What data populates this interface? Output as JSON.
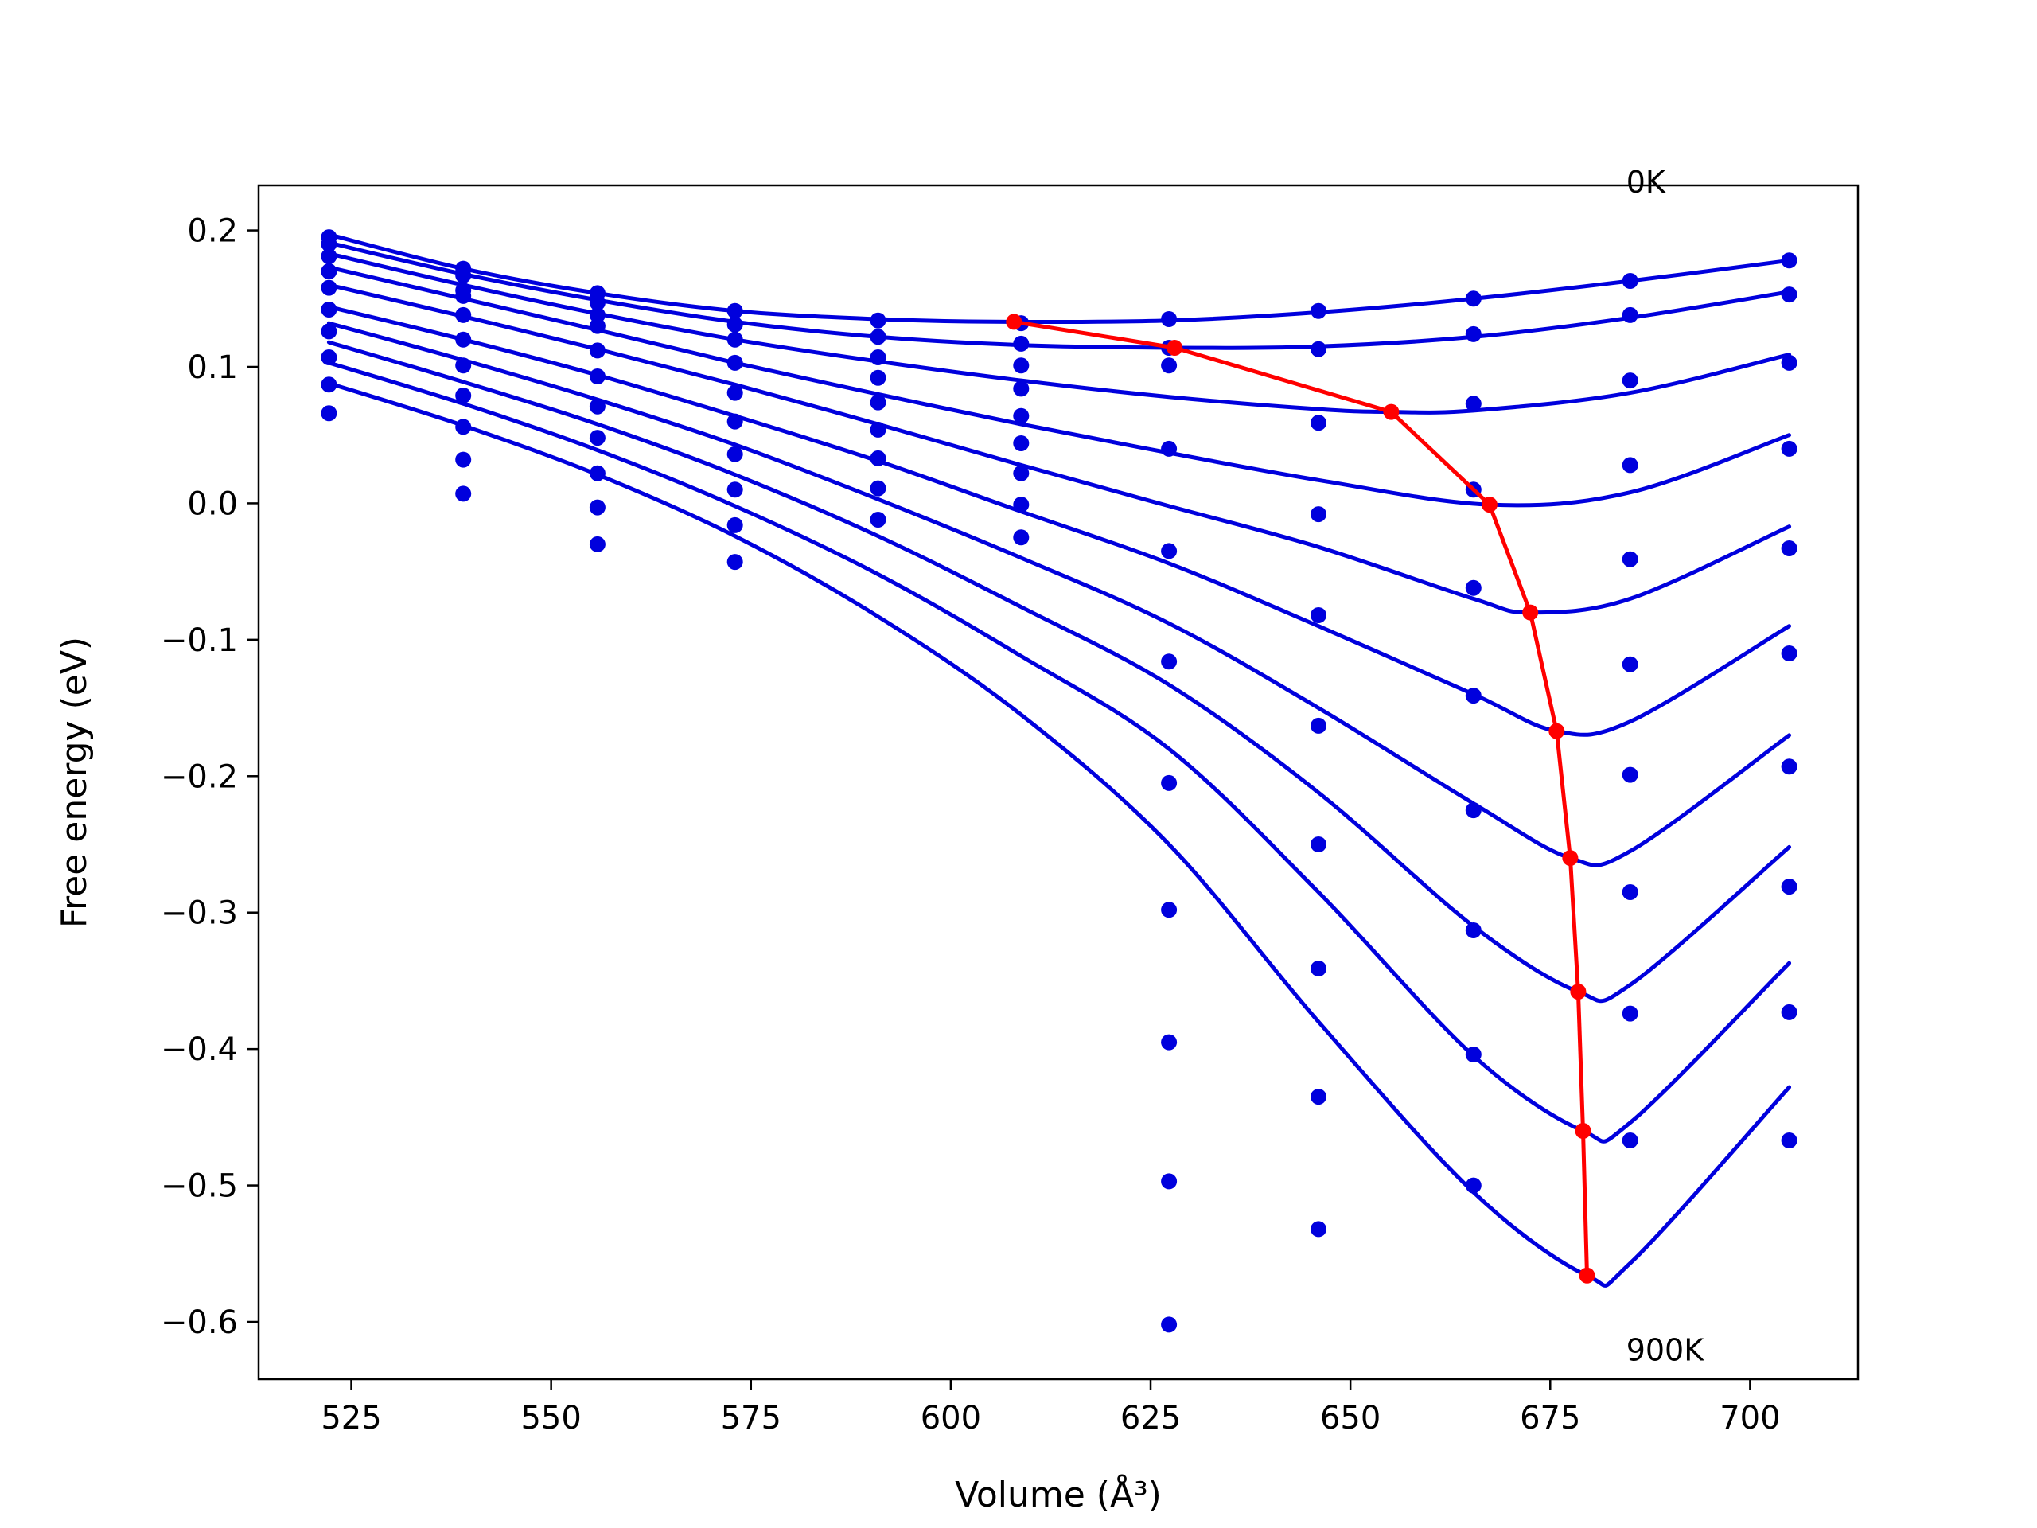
{
  "chart_data": {
    "type": "line",
    "xlabel": "Volume (Å³)",
    "ylabel": "Free energy (eV)",
    "xlim": [
      513.4,
      713.5
    ],
    "ylim": [
      -0.642,
      0.233
    ],
    "x_ticks": [
      525,
      550,
      575,
      600,
      625,
      650,
      675,
      700
    ],
    "y_ticks": [
      0.2,
      0.1,
      0.0,
      -0.1,
      -0.2,
      -0.3,
      -0.4,
      -0.5,
      -0.6
    ],
    "x_tick_labels": [
      "525",
      "550",
      "575",
      "600",
      "625",
      "650",
      "675",
      "700"
    ],
    "y_tick_labels": [
      "0.2",
      "0.1",
      "0.0",
      "−0.1",
      "−0.2",
      "−0.3",
      "−0.4",
      "−0.5",
      "−0.6"
    ],
    "grid": false,
    "legend": "none",
    "annotations": [
      {
        "text": "0K",
        "x": 684.5,
        "y": 0.236
      },
      {
        "text": "900K",
        "x": 684.5,
        "y": -0.62
      }
    ],
    "colors": {
      "curves": "#0000dd",
      "minimum_path": "#ff0000",
      "axes": "#000000"
    },
    "volumes": [
      522.2,
      539.0,
      555.8,
      573.0,
      590.9,
      608.8,
      627.3,
      646.0,
      665.4,
      685.0,
      704.9
    ],
    "points": [
      [
        0.195,
        0.172,
        0.154,
        0.141,
        0.134,
        0.132,
        0.135,
        0.141,
        0.15,
        0.163,
        0.178
      ],
      [
        0.19,
        0.167,
        0.147,
        0.131,
        0.122,
        0.117,
        0.114,
        0.113,
        0.124,
        0.138,
        0.153
      ],
      [
        0.181,
        0.156,
        0.138,
        0.12,
        0.107,
        0.101,
        0.101,
        0.059,
        0.073,
        0.09,
        0.103
      ],
      [
        0.17,
        0.152,
        0.13,
        0.103,
        0.092,
        0.084,
        0.04,
        -0.008,
        0.01,
        0.028,
        0.04
      ],
      [
        0.158,
        0.138,
        0.112,
        0.081,
        0.074,
        0.064,
        -0.035,
        -0.082,
        -0.062,
        -0.041,
        -0.033
      ],
      [
        0.142,
        0.12,
        0.093,
        0.06,
        0.054,
        0.044,
        -0.116,
        -0.163,
        -0.141,
        -0.118,
        -0.11
      ],
      [
        0.126,
        0.101,
        0.071,
        0.036,
        0.033,
        0.022,
        -0.205,
        -0.25,
        -0.225,
        -0.199,
        -0.193
      ],
      [
        0.107,
        0.079,
        0.048,
        0.01,
        0.011,
        -0.001,
        -0.298,
        -0.341,
        -0.313,
        -0.285,
        -0.281
      ],
      [
        0.087,
        0.056,
        0.022,
        -0.016,
        -0.012,
        -0.025,
        -0.395,
        -0.435,
        -0.404,
        -0.374,
        -0.373
      ],
      [
        0.066,
        0.032,
        -0.003,
        -0.043,
        null,
        null,
        -0.497,
        -0.532,
        -0.5,
        -0.467,
        -0.467
      ],
      [
        null,
        0.007,
        -0.03,
        null,
        null,
        null,
        -0.602,
        null,
        null,
        null,
        null
      ]
    ],
    "series": [
      {
        "x": [
          522.2,
          539.0,
          555.8,
          573.0,
          590.9,
          607.0,
          627.3,
          646.0,
          665.4,
          685.0,
          704.9
        ],
        "y": [
          0.197,
          0.172,
          0.154,
          0.141,
          0.135,
          0.133,
          0.134,
          0.14,
          0.15,
          0.163,
          0.178
        ]
      },
      {
        "x": [
          522.2,
          539.0,
          555.8,
          573.0,
          590.9,
          608.8,
          628.0,
          646.0,
          665.4,
          685.0,
          704.9
        ],
        "y": [
          0.191,
          0.168,
          0.149,
          0.133,
          0.122,
          0.116,
          0.114,
          0.115,
          0.122,
          0.136,
          0.155
        ]
      },
      {
        "x": [
          522.2,
          539.0,
          555.8,
          573.0,
          590.9,
          608.8,
          627.3,
          646.0,
          655.1,
          665.4,
          685.0,
          704.9
        ],
        "y": [
          0.183,
          0.16,
          0.139,
          0.12,
          0.104,
          0.09,
          0.078,
          0.069,
          0.067,
          0.068,
          0.081,
          0.109
        ]
      },
      {
        "x": [
          522.2,
          539.0,
          555.8,
          573.0,
          590.9,
          608.8,
          627.3,
          646.0,
          667.4,
          685.0,
          704.9
        ],
        "y": [
          0.173,
          0.15,
          0.127,
          0.103,
          0.08,
          0.058,
          0.037,
          0.017,
          -0.001,
          0.008,
          0.05
        ]
      },
      {
        "x": [
          522.2,
          539.0,
          555.8,
          573.0,
          590.9,
          608.8,
          627.3,
          646.0,
          665.4,
          672.5,
          685.0,
          704.9
        ],
        "y": [
          0.16,
          0.137,
          0.113,
          0.087,
          0.058,
          0.028,
          -0.002,
          -0.032,
          -0.07,
          -0.08,
          -0.07,
          -0.017
        ]
      },
      {
        "x": [
          522.2,
          539.0,
          555.8,
          573.0,
          590.9,
          608.8,
          627.3,
          646.0,
          665.4,
          675.8,
          685.0,
          704.9
        ],
        "y": [
          0.144,
          0.12,
          0.094,
          0.064,
          0.031,
          -0.006,
          -0.044,
          -0.09,
          -0.14,
          -0.167,
          -0.16,
          -0.09
        ]
      },
      {
        "x": [
          522.2,
          539.0,
          555.8,
          573.0,
          590.9,
          608.8,
          627.3,
          646.0,
          665.4,
          677.5,
          685.0,
          704.9
        ],
        "y": [
          0.132,
          0.105,
          0.076,
          0.043,
          0.003,
          -0.04,
          -0.088,
          -0.15,
          -0.22,
          -0.26,
          -0.255,
          -0.17
        ]
      },
      {
        "x": [
          522.2,
          539.0,
          555.8,
          573.0,
          590.9,
          608.8,
          627.3,
          646.0,
          665.4,
          678.5,
          685.0,
          704.9
        ],
        "y": [
          0.118,
          0.089,
          0.058,
          0.021,
          -0.024,
          -0.076,
          -0.133,
          -0.212,
          -0.31,
          -0.358,
          -0.353,
          -0.252
        ]
      },
      {
        "x": [
          522.2,
          539.0,
          555.8,
          573.0,
          590.9,
          608.8,
          627.3,
          646.0,
          665.4,
          679.1,
          685.0,
          704.9
        ],
        "y": [
          0.103,
          0.073,
          0.039,
          -0.002,
          -0.052,
          -0.112,
          -0.18,
          -0.285,
          -0.405,
          -0.46,
          -0.454,
          -0.337
        ]
      },
      {
        "x": [
          522.2,
          539.0,
          555.8,
          573.0,
          590.9,
          608.8,
          627.3,
          646.0,
          665.4,
          679.6,
          685.0,
          704.9
        ],
        "y": [
          0.088,
          0.057,
          0.021,
          -0.024,
          -0.083,
          -0.155,
          -0.25,
          -0.38,
          -0.505,
          -0.566,
          -0.557,
          -0.428
        ]
      }
    ],
    "minimum_path": {
      "x": [
        607.9,
        628.0,
        655.1,
        667.4,
        672.5,
        675.8,
        677.5,
        678.5,
        679.1,
        679.6
      ],
      "y": [
        0.133,
        0.114,
        0.067,
        -0.001,
        -0.08,
        -0.167,
        -0.26,
        -0.358,
        -0.46,
        -0.566
      ]
    }
  }
}
